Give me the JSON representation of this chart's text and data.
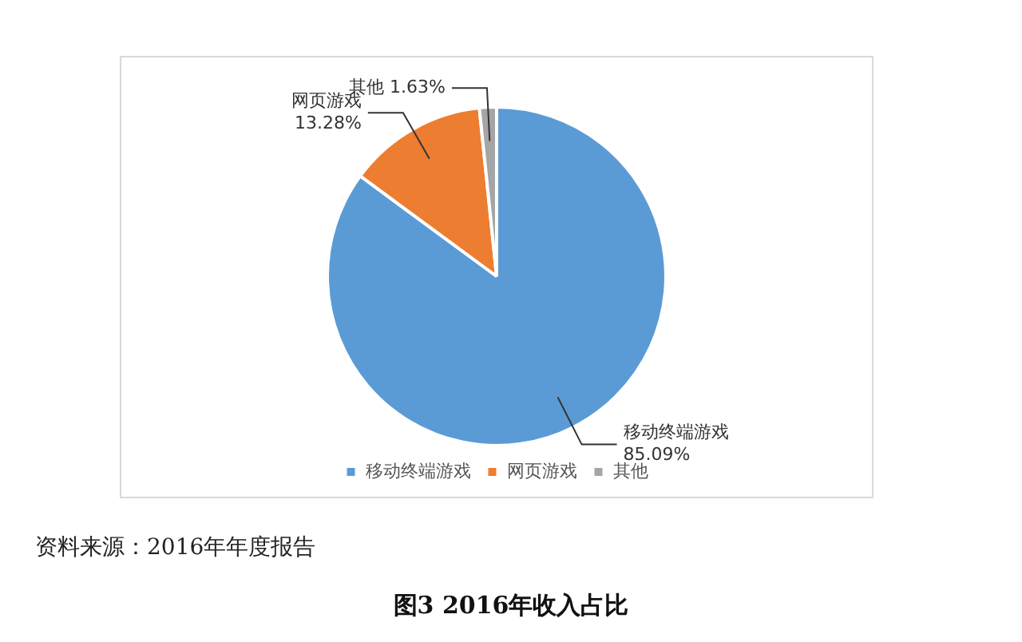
{
  "chart_data": {
    "type": "pie",
    "title": "图3 2016年收入占比",
    "categories": [
      "移动终端游戏",
      "网页游戏",
      "其他"
    ],
    "values": [
      85.09,
      13.28,
      1.63
    ],
    "colors": [
      "#5b9bd5",
      "#ed7d31",
      "#a5a5a5"
    ],
    "value_labels": [
      "85.09%",
      "13.28%",
      "1.63%"
    ],
    "legend": "bottom",
    "annotations": [
      "资料来源：2016年年度报告"
    ]
  }
}
